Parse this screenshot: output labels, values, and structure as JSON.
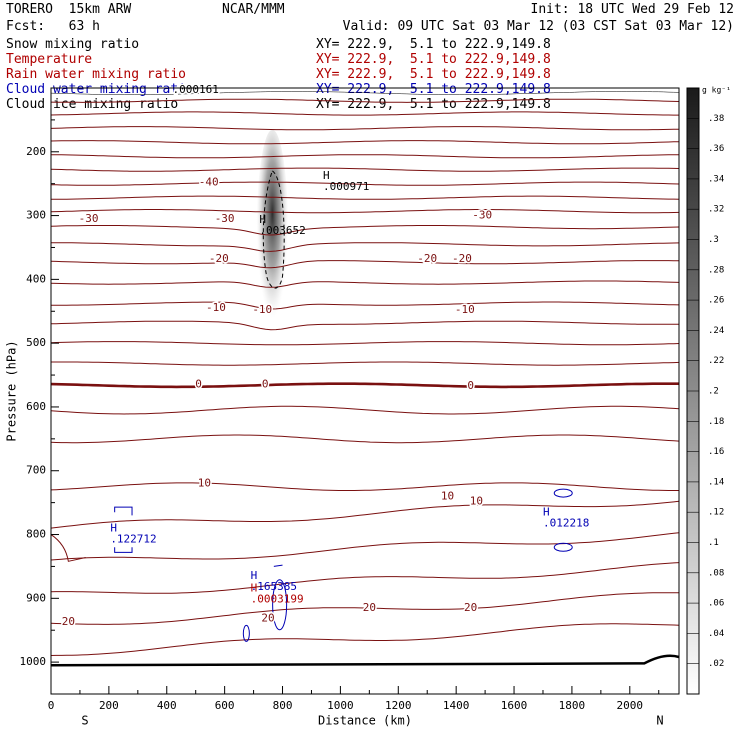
{
  "header": {
    "model": "TORERO  15km ARW",
    "org": "NCAR/MMM",
    "init": "Init: 18 UTC Wed 29 Feb 12",
    "fcst": "Fcst:   63 h",
    "valid": "Valid: 09 UTC Sat 03 Mar 12 (03 CST Sat 03 Mar 12)"
  },
  "fields": [
    {
      "name": "Snow mixing ratio",
      "xy": "XY= 222.9,  5.1 to 222.9,149.8",
      "color": "#000000"
    },
    {
      "name": "Temperature",
      "xy": "XY= 222.9,  5.1 to 222.9,149.8",
      "color": "#b00000"
    },
    {
      "name": "Rain water mixing ratio",
      "xy": "XY= 222.9,  5.1 to 222.9,149.8",
      "color": "#b00000"
    },
    {
      "name": "Cloud water mixing ratio",
      "xy": "XY= 222.9,  5.1 to 222.9,149.8",
      "color": "#0000b4"
    },
    {
      "name": "Cloud ice mixing ratio",
      "xy": "XY= 222.9,  5.1 to 222.9,149.8",
      "color": "#000000"
    }
  ],
  "chart_data": {
    "type": "cross-section",
    "xlabel": "Distance (km)",
    "ylabel": "Pressure (hPa)",
    "xlim": [
      0,
      2170
    ],
    "ylim": [
      100,
      1050
    ],
    "x_ticks": [
      0,
      200,
      400,
      600,
      800,
      1000,
      1200,
      1400,
      1600,
      1800,
      2000
    ],
    "y_ticks": [
      200,
      300,
      400,
      500,
      600,
      700,
      800,
      900,
      1000
    ],
    "x_end_labels": {
      "left": "S",
      "right": "N"
    },
    "temperature_labels": [
      {
        "text": "-40",
        "x": 545,
        "p": 248
      },
      {
        "text": "-30",
        "x": 130,
        "p": 305
      },
      {
        "text": "-30",
        "x": 600,
        "p": 305
      },
      {
        "text": "-30",
        "x": 1490,
        "p": 300
      },
      {
        "text": "-20",
        "x": 580,
        "p": 368
      },
      {
        "text": "-20",
        "x": 1300,
        "p": 368
      },
      {
        "text": "-20",
        "x": 1420,
        "p": 368
      },
      {
        "text": "-10",
        "x": 570,
        "p": 445
      },
      {
        "text": "-10",
        "x": 730,
        "p": 448
      },
      {
        "text": "-10",
        "x": 1430,
        "p": 448
      },
      {
        "text": "0",
        "x": 510,
        "p": 565
      },
      {
        "text": "0",
        "x": 740,
        "p": 565
      },
      {
        "text": "0",
        "x": 1450,
        "p": 567
      },
      {
        "text": "10",
        "x": 530,
        "p": 720
      },
      {
        "text": "10",
        "x": 1370,
        "p": 740
      },
      {
        "text": "10",
        "x": 1470,
        "p": 748
      },
      {
        "text": "20",
        "x": 60,
        "p": 937
      },
      {
        "text": "20",
        "x": 750,
        "p": 932
      },
      {
        "text": "20",
        "x": 1100,
        "p": 915
      },
      {
        "text": "20",
        "x": 1450,
        "p": 915
      }
    ],
    "maxima": [
      {
        "label": "H",
        "value": ".000971",
        "x": 940,
        "p": 255,
        "color": "#000000"
      },
      {
        "label": "H",
        "value": ".003652",
        "x": 720,
        "p": 324,
        "color": "#000000"
      },
      {
        "label": "H",
        "value": ".122712",
        "x": 205,
        "p": 808,
        "color": "#0000b4"
      },
      {
        "label": "H",
        "value": ".012218",
        "x": 1700,
        "p": 783,
        "color": "#0000b4"
      },
      {
        "label": "H",
        "value": ".165385",
        "x": 690,
        "p": 882,
        "color": "#0000b4"
      },
      {
        "label": "H",
        "value": ".0003199",
        "x": 690,
        "p": 902,
        "color": "#b00000"
      }
    ],
    "top_label": {
      "text": ".000161",
      "x": 420,
      "p": 103
    },
    "colorbar": {
      "unit": "g kg⁻¹",
      "min": 0,
      "max": 0.4,
      "tick_labels": [
        ".38",
        ".36",
        ".34",
        ".32",
        ".3",
        ".28",
        ".26",
        ".24",
        ".22",
        ".2",
        ".18",
        ".16",
        ".14",
        ".12",
        ".1",
        ".08",
        ".06",
        ".04",
        ".02"
      ]
    }
  }
}
